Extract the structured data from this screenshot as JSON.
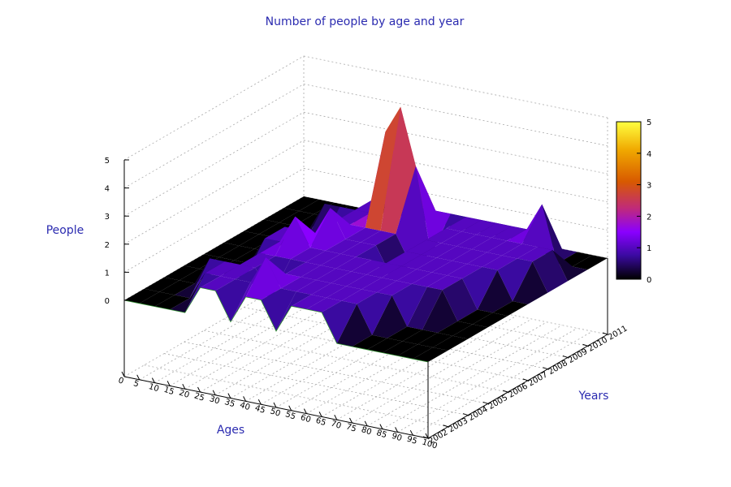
{
  "chart_data": {
    "type": "surface3d",
    "title": "Number of people by age and year",
    "xlabel": "Ages",
    "ylabel": "Years",
    "zlabel": "People",
    "x_ticks": [
      "0",
      "5",
      "10",
      "15",
      "20",
      "25",
      "30",
      "35",
      "40",
      "45",
      "50",
      "55",
      "60",
      "65",
      "70",
      "75",
      "80",
      "85",
      "90",
      "95",
      "100"
    ],
    "y_ticks": [
      "2002",
      "2003",
      "2004",
      "2005",
      "2006",
      "2007",
      "2008",
      "2009",
      "2010",
      "2011"
    ],
    "z_ticks": [
      "0",
      "1",
      "2",
      "3",
      "4",
      "5"
    ],
    "colorbar_ticks": [
      "0",
      "1",
      "2",
      "3",
      "4",
      "5"
    ],
    "xlim": [
      0,
      100
    ],
    "ylim": [
      2002,
      2011
    ],
    "zlim": [
      0,
      5
    ],
    "colorbar_range": [
      0,
      5
    ],
    "colormap": [
      "#000000",
      "#3a0aa0",
      "#8a00ff",
      "#c02a7a",
      "#d85a00",
      "#f0a800",
      "#ffff40"
    ],
    "ages": [
      0,
      5,
      10,
      15,
      20,
      25,
      30,
      35,
      40,
      45,
      50,
      55,
      60,
      65,
      70,
      75,
      80,
      85,
      90,
      95,
      100
    ],
    "years": [
      2002,
      2003,
      2004,
      2005,
      2006,
      2007,
      2008,
      2009,
      2010,
      2011
    ],
    "values": [
      [
        0,
        0,
        0,
        0,
        0,
        1,
        1,
        0,
        1,
        1,
        0,
        1,
        1,
        1,
        0,
        0,
        0,
        0,
        0,
        0,
        0
      ],
      [
        0,
        0,
        0,
        0,
        1,
        1,
        1,
        1,
        2,
        1,
        1,
        1,
        1,
        1,
        1,
        0,
        0,
        0,
        0,
        0,
        0
      ],
      [
        0,
        0,
        0,
        1,
        1,
        1,
        1,
        0,
        1,
        1,
        1,
        1,
        1,
        1,
        1,
        1,
        0,
        0,
        0,
        0,
        0
      ],
      [
        0,
        0,
        0,
        0,
        0,
        1,
        1,
        1,
        1,
        1,
        1,
        1,
        1,
        1,
        1,
        1,
        1,
        1,
        0,
        0,
        0
      ],
      [
        0,
        0,
        0,
        0,
        1,
        1,
        2,
        1,
        1,
        1,
        1,
        1,
        1,
        1,
        1,
        1,
        1,
        1,
        0,
        0,
        0
      ],
      [
        0,
        0,
        0,
        0,
        1,
        1,
        1,
        2,
        1,
        1,
        1,
        0,
        1,
        1,
        1,
        1,
        1,
        1,
        1,
        0,
        0
      ],
      [
        0,
        0,
        0,
        0,
        0,
        0,
        1,
        1,
        1,
        1,
        1,
        0,
        1,
        1,
        1,
        1,
        1,
        1,
        1,
        1,
        0
      ],
      [
        0,
        0,
        0,
        0,
        1,
        1,
        1,
        1,
        4,
        5,
        3,
        0,
        1,
        1,
        1,
        1,
        1,
        1,
        1,
        1,
        0
      ],
      [
        0,
        0,
        0,
        0,
        0,
        0,
        1,
        1,
        2,
        1,
        1,
        1,
        1,
        1,
        1,
        1,
        1,
        2,
        0,
        0,
        0
      ],
      [
        0,
        0,
        0,
        0,
        0,
        0,
        0,
        0,
        0,
        0,
        0,
        0,
        0,
        0,
        0,
        0,
        0,
        0,
        0,
        0,
        0
      ]
    ]
  }
}
